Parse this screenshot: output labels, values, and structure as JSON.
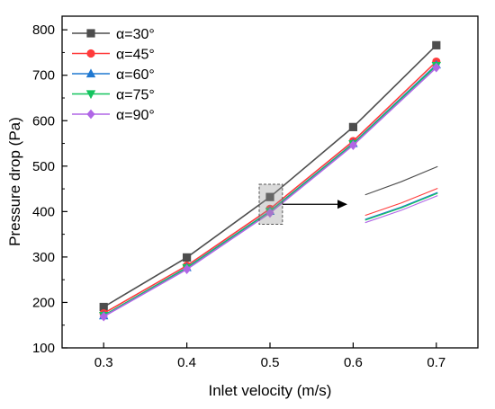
{
  "chart_data": {
    "type": "line",
    "xlabel": "Inlet velocity (m/s)",
    "ylabel": "Pressure drop (Pa)",
    "x": [
      0.3,
      0.4,
      0.5,
      0.6,
      0.7
    ],
    "x_tick_labels": [
      "0.3",
      "0.4",
      "0.5",
      "0.6",
      "0.7"
    ],
    "y_ticks": [
      100,
      200,
      300,
      400,
      500,
      600,
      700,
      800
    ],
    "xlim": [
      0.25,
      0.75
    ],
    "ylim": [
      100,
      830
    ],
    "grid": false,
    "legend_placement": "top-left",
    "series": [
      {
        "name": "α=30°",
        "color": "#4d4d4d",
        "marker": "square",
        "values": [
          190,
          299,
          432,
          586,
          766
        ]
      },
      {
        "name": "α=45°",
        "color": "#ff3b3b",
        "marker": "circle",
        "values": [
          176,
          281,
          406,
          555,
          730
        ]
      },
      {
        "name": "α=60°",
        "color": "#1f78d1",
        "marker": "triangle-up",
        "values": [
          171,
          277,
          401,
          550,
          723
        ]
      },
      {
        "name": "α=75°",
        "color": "#13c45e",
        "marker": "triangle-down",
        "values": [
          171,
          276,
          400,
          549,
          721
        ]
      },
      {
        "name": "α=90°",
        "color": "#b066e6",
        "marker": "diamond",
        "values": [
          169,
          273,
          397,
          546,
          717
        ]
      }
    ],
    "annotation": {
      "type": "zoom-inset",
      "box_x": [
        0.487,
        0.515
      ],
      "box_y": [
        372,
        460
      ],
      "inset_x": [
        0.6,
        0.7
      ],
      "inset_y": [
        365,
        505
      ]
    }
  }
}
